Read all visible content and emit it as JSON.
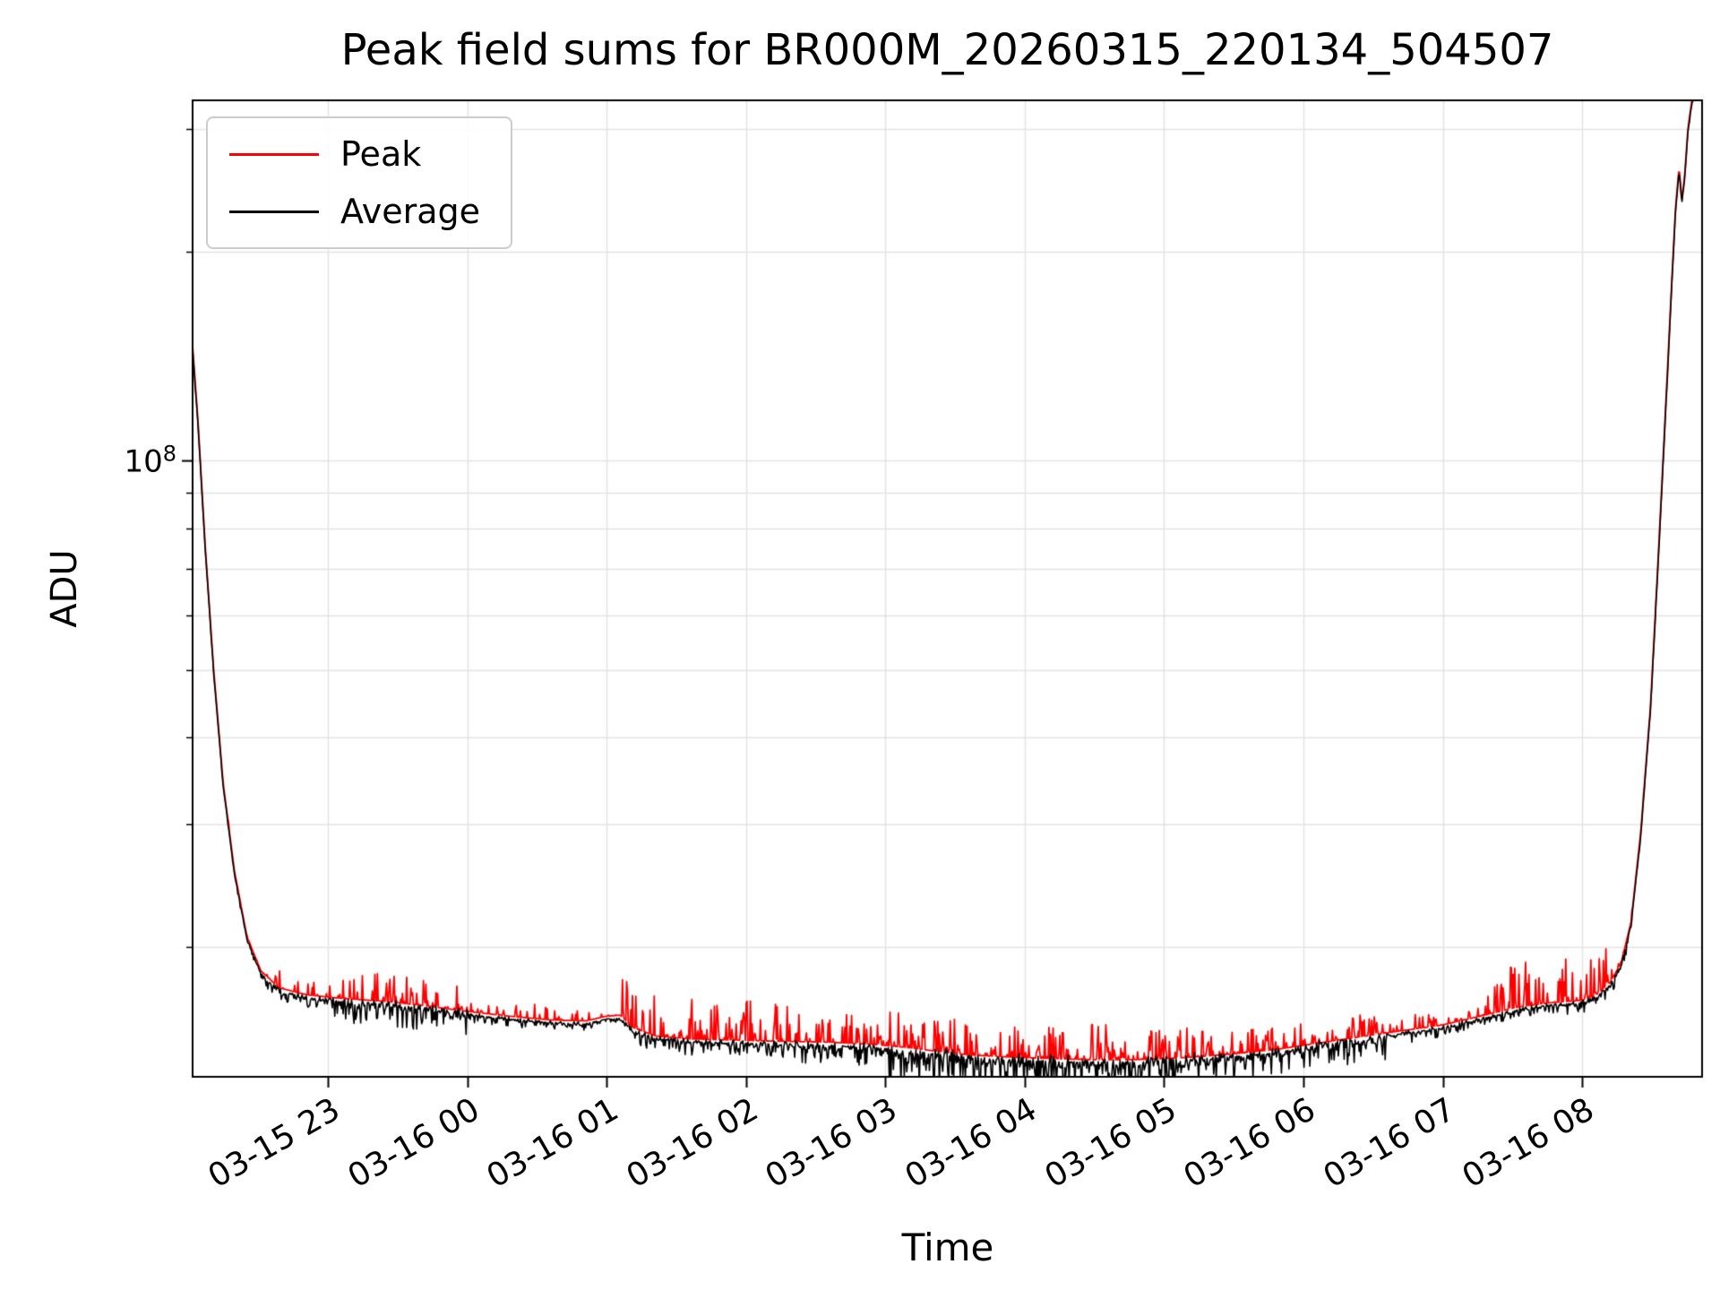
{
  "figure": {
    "background": "#ffffff",
    "axes_color": "#000000"
  },
  "chart_data": {
    "type": "line",
    "title": "Peak field sums for BR000M_20260315_220134_504507",
    "xlabel": "Time",
    "ylabel": "ADU",
    "yscale": "log",
    "grid": {
      "show": true,
      "color": "#e4e4e4"
    },
    "legend": {
      "position": "upper-left"
    },
    "series": [
      {
        "name": "Peak",
        "color": "#ff0000"
      },
      {
        "name": "Average",
        "color": "#000000"
      }
    ],
    "x_range_hours": [
      22.03,
      32.86
    ],
    "ylim": [
      13000000.0,
      330000000.0
    ],
    "y_major_ticks": [
      {
        "value": 100000000.0,
        "label_base": "10",
        "label_exp": "8"
      }
    ],
    "y_minor_ticks": [
      20000000.0,
      30000000.0,
      40000000.0,
      50000000.0,
      60000000.0,
      70000000.0,
      80000000.0,
      90000000.0,
      200000000.0,
      300000000.0
    ],
    "x_ticks": [
      {
        "hour": 23,
        "label": "03-15 23"
      },
      {
        "hour": 24,
        "label": "03-16 00"
      },
      {
        "hour": 25,
        "label": "03-16 01"
      },
      {
        "hour": 26,
        "label": "03-16 02"
      },
      {
        "hour": 27,
        "label": "03-16 03"
      },
      {
        "hour": 28,
        "label": "03-16 04"
      },
      {
        "hour": 29,
        "label": "03-16 05"
      },
      {
        "hour": 30,
        "label": "03-16 06"
      },
      {
        "hour": 31,
        "label": "03-16 07"
      },
      {
        "hour": 32,
        "label": "03-16 08"
      }
    ],
    "envelope_points": [
      [
        22.03,
        145000000.0
      ],
      [
        22.07,
        112000000.0
      ],
      [
        22.12,
        75000000.0
      ],
      [
        22.18,
        50000000.0
      ],
      [
        22.25,
        34000000.0
      ],
      [
        22.33,
        25500000.0
      ],
      [
        22.42,
        20500000.0
      ],
      [
        22.52,
        18300000.0
      ],
      [
        22.65,
        17300000.0
      ],
      [
        22.85,
        16900000.0
      ],
      [
        23.1,
        16700000.0
      ],
      [
        23.4,
        16550000.0
      ],
      [
        23.7,
        16300000.0
      ],
      [
        24.0,
        16000000.0
      ],
      [
        24.3,
        15750000.0
      ],
      [
        24.6,
        15550000.0
      ],
      [
        24.85,
        15500000.0
      ],
      [
        25.0,
        15750000.0
      ],
      [
        25.1,
        15800000.0
      ],
      [
        25.18,
        15200000.0
      ],
      [
        25.35,
        14750000.0
      ],
      [
        25.6,
        14600000.0
      ],
      [
        25.9,
        14550000.0
      ],
      [
        26.2,
        14500000.0
      ],
      [
        26.6,
        14450000.0
      ],
      [
        26.9,
        14350000.0
      ],
      [
        27.15,
        14200000.0
      ],
      [
        27.4,
        14000000.0
      ],
      [
        27.6,
        13850000.0
      ],
      [
        27.9,
        13750000.0
      ],
      [
        28.2,
        13680000.0
      ],
      [
        28.6,
        13620000.0
      ],
      [
        28.9,
        13650000.0
      ],
      [
        29.2,
        13750000.0
      ],
      [
        29.5,
        13900000.0
      ],
      [
        29.8,
        14100000.0
      ],
      [
        30.1,
        14400000.0
      ],
      [
        30.4,
        14700000.0
      ],
      [
        30.7,
        15000000.0
      ],
      [
        31.0,
        15300000.0
      ],
      [
        31.3,
        15800000.0
      ],
      [
        31.55,
        16250000.0
      ],
      [
        31.75,
        16450000.0
      ],
      [
        32.0,
        16600000.0
      ],
      [
        32.1,
        16900000.0
      ],
      [
        32.2,
        17600000.0
      ],
      [
        32.28,
        18800000.0
      ],
      [
        32.35,
        21500000.0
      ],
      [
        32.42,
        29000000.0
      ],
      [
        32.49,
        44000000.0
      ],
      [
        32.55,
        75000000.0
      ],
      [
        32.6,
        120000000.0
      ],
      [
        32.64,
        175000000.0
      ],
      [
        32.67,
        230000000.0
      ],
      [
        32.695,
        262000000.0
      ],
      [
        32.715,
        235000000.0
      ],
      [
        32.735,
        255000000.0
      ],
      [
        32.76,
        300000000.0
      ],
      [
        32.79,
        330000000.0
      ],
      [
        32.86,
        345000000.0
      ]
    ],
    "noise": {
      "seed": 1337,
      "step_hours": 0.006,
      "peak_offset": 0.009,
      "defaults": [
        0.1,
        0.015,
        0.006
      ],
      "regions": [
        [
          22.55,
          23.05,
          0.3,
          0.06,
          0.015
        ],
        [
          23.05,
          24.0,
          0.35,
          0.1,
          0.032
        ],
        [
          24.0,
          24.95,
          0.25,
          0.05,
          0.012
        ],
        [
          25.1,
          26.35,
          0.45,
          0.15,
          0.02
        ],
        [
          26.35,
          27.0,
          0.38,
          0.1,
          0.028
        ],
        [
          27.0,
          29.4,
          0.5,
          0.13,
          0.048
        ],
        [
          29.4,
          30.6,
          0.4,
          0.08,
          0.036
        ],
        [
          30.6,
          31.3,
          0.25,
          0.05,
          0.015
        ],
        [
          31.3,
          32.32,
          0.42,
          0.16,
          0.015
        ]
      ]
    }
  }
}
